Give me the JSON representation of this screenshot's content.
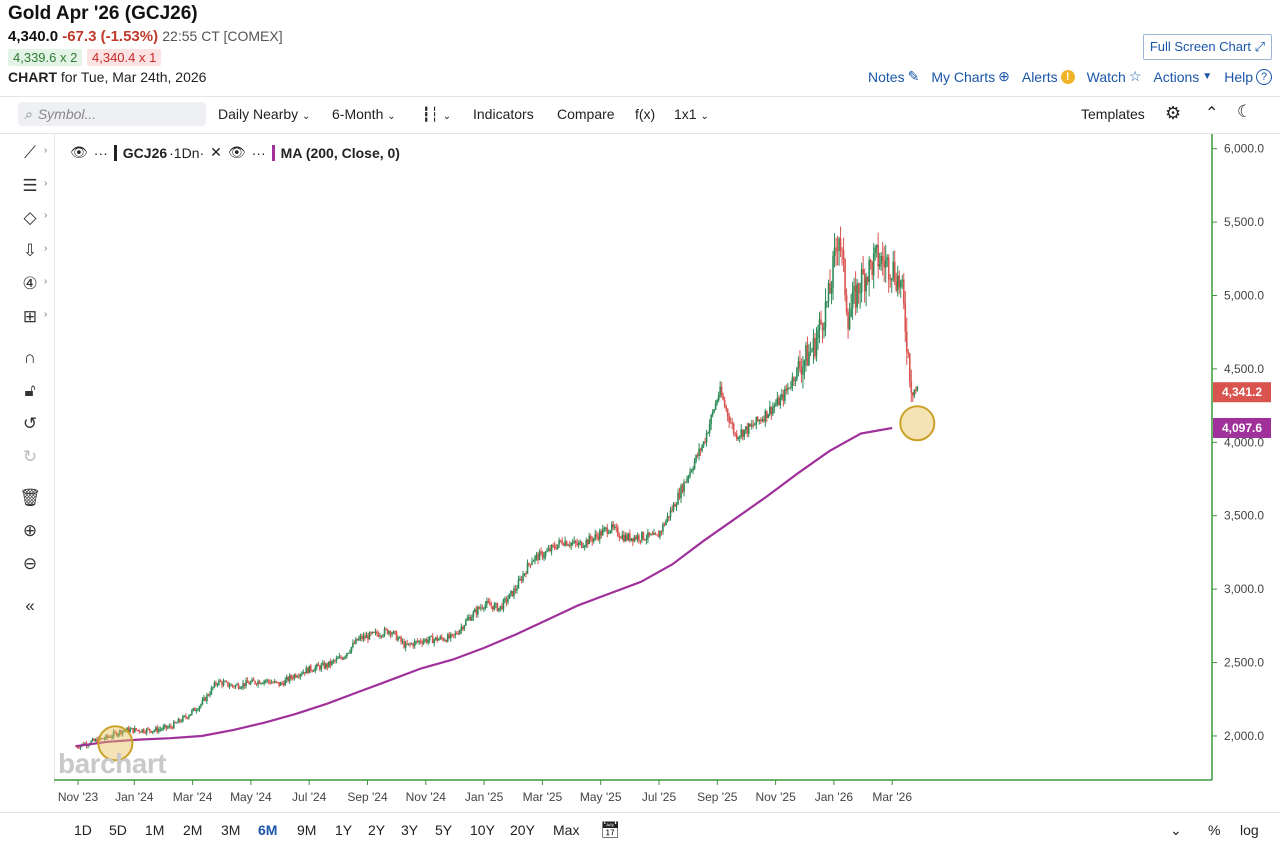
{
  "header": {
    "title": "Gold Apr '26 (GCJ26)",
    "last": "4,340.0",
    "change": "-67.3 (-1.53%)",
    "time": "22:55 CT [COMEX]",
    "bid": "4,339.6 x 2",
    "ask": "4,340.4 x 1",
    "chart_label": "CHART",
    "chart_date": "for Tue, Mar 24th, 2026",
    "full_screen": "Full Screen Chart"
  },
  "top_links": [
    "Notes",
    "My Charts",
    "Alerts",
    "Watch",
    "Actions",
    "Help"
  ],
  "toolbar": {
    "search_placeholder": "Symbol...",
    "items": [
      "Daily Nearby",
      "6-Month",
      "Indicators",
      "Compare",
      "f(x)",
      "1x1"
    ],
    "templates": "Templates"
  },
  "legend": {
    "symbol": "GCJ26",
    "interval": "·1Dn·",
    "ma_label": "MA (200, Close, 0)"
  },
  "logo": "barchart",
  "range_buttons": [
    "1D",
    "5D",
    "1M",
    "2M",
    "3M",
    "6M",
    "9M",
    "1Y",
    "2Y",
    "3Y",
    "5Y",
    "10Y",
    "20Y",
    "Max"
  ],
  "active_range": "6M",
  "bottom_right": [
    "%",
    "log"
  ],
  "colors": {
    "up": "#2e8b57",
    "down": "#d9534f",
    "ma": "#a0309a",
    "axis": "#3a9a3a",
    "highlight": "#e8c25a"
  },
  "chart_data": {
    "type": "candlestick",
    "y_ticks": [
      "2,000.0",
      "2,500.0",
      "3,000.0",
      "3,500.0",
      "4,000.0",
      "4,500.0",
      "5,000.0",
      "5,500.0",
      "6,000.0"
    ],
    "x_ticks": [
      "Nov '23",
      "Jan '24",
      "Mar '24",
      "May '24",
      "Jul '24",
      "Sep '24",
      "Nov '24",
      "Jan '25",
      "Mar '25",
      "May '25",
      "Jul '25",
      "Sep '25",
      "Nov '25",
      "Jan '26",
      "Mar '26"
    ],
    "ylim": [
      1700,
      6100
    ],
    "price_label": "4,341.2",
    "ma_value_label": "4,097.6",
    "price_path": [
      [
        0,
        1930
      ],
      [
        1,
        1990
      ],
      [
        1.5,
        2040
      ],
      [
        2,
        2040
      ],
      [
        2.5,
        2040
      ],
      [
        3,
        2060
      ],
      [
        3.5,
        2130
      ],
      [
        4,
        2220
      ],
      [
        4.5,
        2370
      ],
      [
        5,
        2340
      ],
      [
        6,
        2380
      ],
      [
        6.5,
        2350
      ],
      [
        7,
        2420
      ],
      [
        7.5,
        2460
      ],
      [
        8,
        2480
      ],
      [
        8.5,
        2540
      ],
      [
        9,
        2660
      ],
      [
        10,
        2720
      ],
      [
        10.5,
        2610
      ],
      [
        11,
        2650
      ],
      [
        12,
        2670
      ],
      [
        12.5,
        2800
      ],
      [
        13,
        2900
      ],
      [
        13.5,
        2870
      ],
      [
        14,
        3000
      ],
      [
        14.5,
        3200
      ],
      [
        15,
        3250
      ],
      [
        15.5,
        3330
      ],
      [
        16,
        3300
      ],
      [
        16.5,
        3350
      ],
      [
        17,
        3420
      ],
      [
        17.5,
        3350
      ],
      [
        18,
        3360
      ],
      [
        18.5,
        3350
      ],
      [
        19,
        3550
      ],
      [
        19.5,
        3780
      ],
      [
        20,
        4000
      ],
      [
        20.5,
        4350
      ],
      [
        21,
        4050
      ],
      [
        21.5,
        4100
      ],
      [
        22,
        4200
      ],
      [
        22.5,
        4300
      ],
      [
        23,
        4500
      ],
      [
        23.5,
        4650
      ],
      [
        24,
        5000
      ],
      [
        24.3,
        5450
      ],
      [
        24.6,
        4850
      ],
      [
        25,
        5100
      ],
      [
        25.5,
        5250
      ],
      [
        26,
        5200
      ],
      [
        26.3,
        5050
      ],
      [
        26.6,
        4400
      ],
      [
        26.8,
        4340
      ]
    ],
    "ma_path": [
      [
        0,
        1930
      ],
      [
        1,
        1960
      ],
      [
        2,
        1975
      ],
      [
        3,
        1985
      ],
      [
        4,
        2000
      ],
      [
        5,
        2040
      ],
      [
        6,
        2090
      ],
      [
        7,
        2150
      ],
      [
        8,
        2220
      ],
      [
        9,
        2300
      ],
      [
        10,
        2380
      ],
      [
        11,
        2460
      ],
      [
        12,
        2520
      ],
      [
        13,
        2600
      ],
      [
        14,
        2690
      ],
      [
        15,
        2790
      ],
      [
        16,
        2890
      ],
      [
        17,
        2970
      ],
      [
        18,
        3050
      ],
      [
        19,
        3170
      ],
      [
        20,
        3330
      ],
      [
        21,
        3480
      ],
      [
        22,
        3630
      ],
      [
        23,
        3790
      ],
      [
        24,
        3940
      ],
      [
        25,
        4060
      ],
      [
        26,
        4097.6
      ]
    ],
    "highlights": [
      {
        "x": 1,
        "y": 1950
      },
      {
        "x": 26.8,
        "y": 4130
      }
    ]
  }
}
